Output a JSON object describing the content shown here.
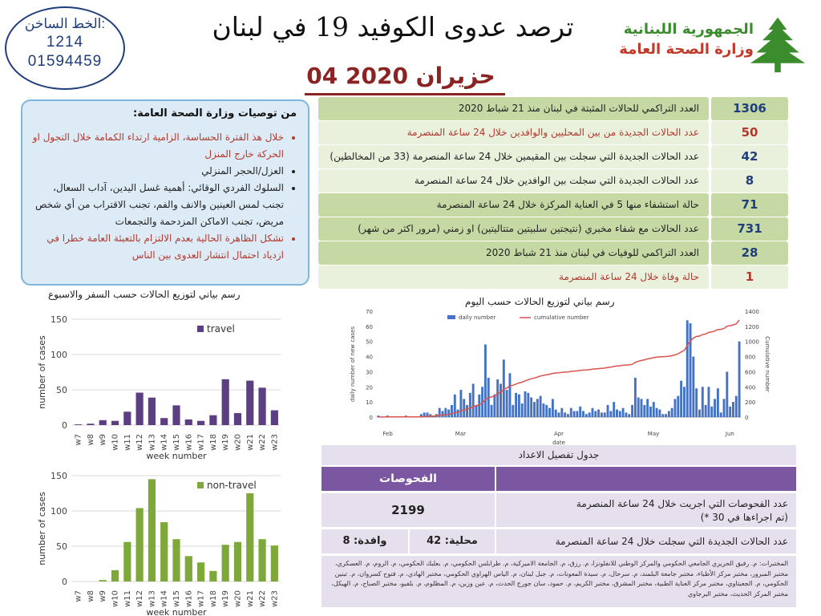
{
  "header": {
    "hotline_label": "الخط الساخن:",
    "hotline_number_1": "1214",
    "hotline_number_2": "01594459",
    "title": "ترصد عدوى الكوفيد 19 في لبنان",
    "date": "04 حزيران 2020",
    "ministry_line_1": "الجمهورية اللبنانية",
    "ministry_line_2": "وزارة الصحة العامة"
  },
  "recommendations": {
    "title": "من توصيات وزارة الصحة العامة:",
    "items": [
      "خلال هذ الفترة الحساسة، الزامية ارتداء الكمامة خلال التجول او الحركة خارج المنزل",
      "العزل/الحجر المنزلي",
      "السلوك الفردي الوقائي: أهمية غسل اليدين، آداب السعال، تجنب لمس العينين والانف والفم، تجنب الاقتراب من أي شخص مريض، تجنب الاماكن المزدحمة والتجمعات",
      "تشكل الظاهرة الحالية بعدم الالتزام بالتعبئة العامة خطرا في ازدياد احتمال انتشار العدوى بين الناس"
    ]
  },
  "stats": [
    {
      "label": "العدد التراكمي للحالات المثبتة في لبنان منذ 21 شباط 2020",
      "value": "1306"
    },
    {
      "label": "عدد الحالات الجديدة من بين المحليين والوافدين خلال 24 ساعة المنصرمة",
      "value": "50"
    },
    {
      "label": "عدد الحالات الجديدة التي سجلت بين المقيمين خلال 24 ساعة المنصرمة (33 من المخالطين)",
      "value": "42"
    },
    {
      "label": "عدد الحالات الجديدة التي سجلت بين الوافدين خلال 24 ساعة المنصرمة",
      "value": "8"
    },
    {
      "label": "حالة استشفاء منها 5 في العناية المركزة خلال 24 ساعة المنصرمة",
      "value": "71"
    },
    {
      "label": "عدد الحالات مع شفاء مخبري (نتيجتين سلبيتين متتاليتين) او زمني (مرور اكثر من شهر)",
      "value": "731"
    },
    {
      "label": "العدد التراكمي للوفيات في لبنان منذ 21 شباط 2020",
      "value": "28"
    },
    {
      "label": "حالة وفاة خلال 24 ساعة المنصرمة",
      "value": "1"
    }
  ],
  "travel_chart_title": "رسم بياني لتوزيع الحالات حسب السفر والاسبوع",
  "daily_chart_title": "رسم بياني لتوزيع الحالات حسب اليوم",
  "chart_data": [
    {
      "type": "bar",
      "categories": [
        "w7",
        "w8",
        "w9",
        "w10",
        "w11",
        "w12",
        "w13",
        "w14",
        "w15",
        "w16",
        "w17",
        "w18",
        "w19",
        "w20",
        "w21",
        "w22",
        "w23"
      ],
      "series": [
        {
          "name": "travel",
          "values": [
            1,
            2,
            7,
            6,
            19,
            46,
            39,
            10,
            28,
            8,
            6,
            14,
            65,
            17,
            63,
            53,
            21
          ]
        }
      ],
      "xlabel": "week number",
      "ylabel": "number of cases",
      "ylim": [
        0,
        150
      ],
      "yticks": [
        0,
        50,
        100,
        150
      ],
      "color": "#5b3f82",
      "legend": "top-right"
    },
    {
      "type": "bar",
      "categories": [
        "w7",
        "w8",
        "w9",
        "w10",
        "w11",
        "w12",
        "w13",
        "w14",
        "w15",
        "w16",
        "w17",
        "w18",
        "w19",
        "w20",
        "w21",
        "w22",
        "w23"
      ],
      "series": [
        {
          "name": "non-travel",
          "values": [
            0,
            0,
            2,
            16,
            56,
            104,
            145,
            84,
            60,
            36,
            27,
            15,
            52,
            56,
            125,
            60,
            51
          ]
        }
      ],
      "xlabel": "week number",
      "ylabel": "number of cases",
      "ylim": [
        0,
        150
      ],
      "yticks": [
        0,
        50,
        100,
        150
      ],
      "color": "#7ea83a",
      "legend": "top-right"
    },
    {
      "type": "bar+line",
      "series": [
        {
          "name": "daily number",
          "type": "bar",
          "axis": "left",
          "color": "#4472c4",
          "values": [
            1,
            0,
            0,
            1,
            0,
            0,
            0,
            0,
            0,
            1,
            0,
            0,
            0,
            0,
            2,
            3,
            3,
            2,
            1,
            2,
            6,
            4,
            6,
            5,
            8,
            15,
            5,
            18,
            12,
            8,
            16,
            22,
            8,
            15,
            20,
            48,
            26,
            8,
            15,
            25,
            22,
            38,
            18,
            29,
            8,
            16,
            15,
            9,
            17,
            16,
            13,
            10,
            12,
            14,
            9,
            8,
            6,
            12,
            5,
            3,
            6,
            3,
            2,
            6,
            4,
            4,
            7,
            4,
            2,
            3,
            6,
            4,
            5,
            3,
            3,
            8,
            4,
            10,
            5,
            4,
            6,
            3,
            2,
            8,
            26,
            13,
            12,
            8,
            12,
            7,
            10,
            6,
            5,
            2,
            2,
            4,
            6,
            12,
            14,
            24,
            20,
            64,
            62,
            40,
            19,
            5,
            20,
            8,
            20,
            7,
            12,
            19,
            3,
            12,
            30,
            7,
            10,
            14,
            50
          ]
        },
        {
          "name": "cumulative number",
          "type": "line",
          "axis": "right",
          "color": "#d9544f"
        }
      ],
      "ylabel": "daily number of new cases",
      "y2label": "Cumulative number",
      "xlabel": "date",
      "ylim": [
        0,
        70
      ],
      "yticks": [
        0,
        10,
        20,
        30,
        40,
        50,
        60,
        70
      ],
      "y2lim": [
        0,
        1400
      ],
      "y2ticks": [
        0,
        200,
        400,
        600,
        800,
        1000,
        1200,
        1400
      ],
      "months": [
        "Feb",
        "Mar",
        "Apr",
        "May",
        "Jun"
      ],
      "legend": "top"
    }
  ],
  "tests": {
    "title": "جدول تفصيل الاعداد",
    "header": "الفحوصات",
    "row1_label": "عدد الفحوصات التي اجريت خلال 24 ساعة المنصرمة",
    "row1_note": "(تم اجراءها في 30 *)",
    "row1_value": "2199",
    "row2_label": "عدد الحالات الجديدة التي سجلت خلال 24 ساعة المنصرمة",
    "row2_local": "محلية: 42",
    "row2_arrivals": "وافدة: 8",
    "footnote": "المختبرات: م. رفيق الحريري الجامعي الحكومي والمركز الوطني للانفلونزا، م. رزق، م. الجامعة الاميركية، م. طرابلس الحكومي، م. بعلبك الحكومي، م. الروم، م. العسكري، مختبر المبرور، مختبر مركز الأطباء، مختبر جامعة البلمند، م. سرحال، م. سيدة المعونات، م. جبل لبنان، م. الياس الهراوي الحكومي، مختبر الهادي، م. فتوح كسروان، م. تبنين الحكومي، م. الجعيتاوي، مختبر مركز العناية الطبية، مختبر المشرق، مختبر الكريم، م. حمود، سان جورج الحدث، م. عين وزين، م. المظلوم، م. بلفيو، مختبر الصباح، م. الهيكل، مختبر المركز الحديث، مختبر البرجاوي"
  }
}
